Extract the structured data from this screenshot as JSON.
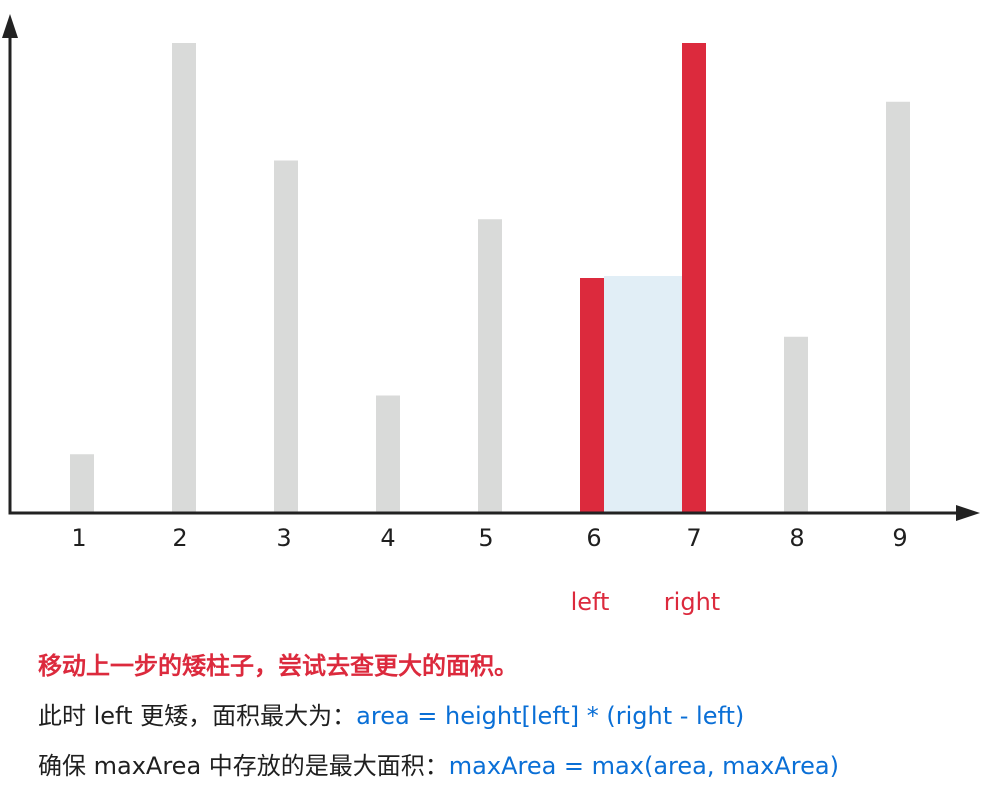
{
  "chart_data": {
    "type": "bar",
    "categories": [
      "1",
      "2",
      "3",
      "4",
      "5",
      "6",
      "7",
      "8",
      "9"
    ],
    "values": [
      1,
      8,
      6,
      2,
      5,
      4,
      8,
      3,
      7
    ],
    "highlighted": [
      "6",
      "7"
    ],
    "area_between": [
      "6",
      "7"
    ],
    "pointer_labels": [
      {
        "category": "6",
        "text": "left"
      },
      {
        "category": "7",
        "text": "right"
      }
    ],
    "colors": {
      "bar": "#d9dad9",
      "highlight": "#dc2a3d",
      "area": "#e1eef6",
      "axis": "#222222"
    }
  },
  "notes": {
    "line1": "移动上一步的矮柱子，尝试去查更大的面积。",
    "line2_text": "此时 left 更矮，面积最大为：",
    "line2_code": "area = height[left] * (right - left)",
    "line3_text": "确保 maxArea 中存放的是最大面积：",
    "line3_code": "maxArea = max(area, maxArea)"
  },
  "colors": {
    "text": "#1f1f1f",
    "accent_red": "#dc2a3d",
    "code_blue": "#0a6fd6"
  }
}
